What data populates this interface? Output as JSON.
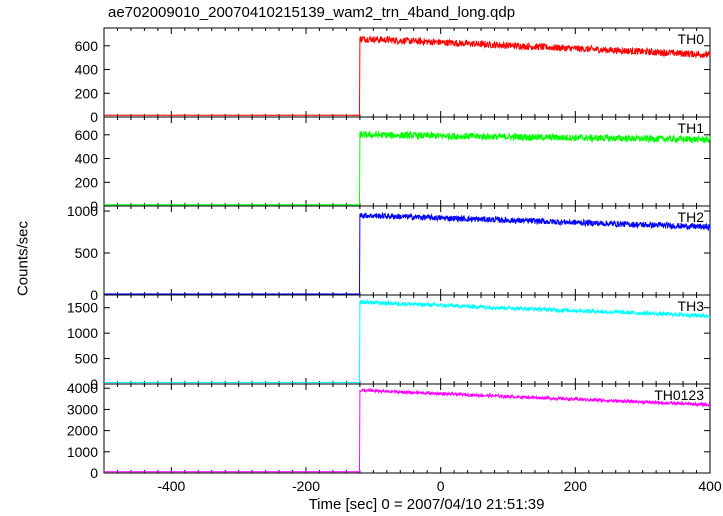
{
  "title": "ae702009010_20070410215139_wam2_trn_4band_long.qdp",
  "xlabel": "Time [sec] 0 = 2007/04/10 21:51:39",
  "ylabel": "Counts/sec",
  "chart_data": {
    "type": "line",
    "x_range": [
      -500,
      400
    ],
    "x_ticks": [
      -400,
      -200,
      0,
      200,
      400
    ],
    "onset_time": -120,
    "series": [
      {
        "name": "TH0",
        "color": "#ff0000",
        "ylim": [
          0,
          750
        ],
        "y_ticks": [
          0,
          200,
          400,
          600
        ],
        "background_level": 15,
        "peak_level": 660,
        "end_level": 525,
        "noise": 18
      },
      {
        "name": "TH1",
        "color": "#00ff00",
        "ylim": [
          0,
          750
        ],
        "y_ticks": [
          0,
          200,
          400,
          600
        ],
        "background_level": 10,
        "peak_level": 600,
        "end_level": 560,
        "noise": 18
      },
      {
        "name": "TH2",
        "color": "#0000ff",
        "ylim": [
          0,
          1060
        ],
        "y_ticks": [
          0,
          500,
          1000
        ],
        "background_level": 12,
        "peak_level": 950,
        "end_level": 810,
        "noise": 22
      },
      {
        "name": "TH3",
        "color": "#00ffff",
        "ylim": [
          0,
          1750
        ],
        "y_ticks": [
          0,
          500,
          1000,
          1500
        ],
        "background_level": 30,
        "peak_level": 1610,
        "end_level": 1340,
        "noise": 25
      },
      {
        "name": "TH0123",
        "color": "#ff00ff",
        "ylim": [
          0,
          4200
        ],
        "y_ticks": [
          0,
          1000,
          2000,
          3000,
          4000
        ],
        "background_level": 60,
        "peak_level": 3900,
        "end_level": 3220,
        "noise": 45
      }
    ]
  }
}
